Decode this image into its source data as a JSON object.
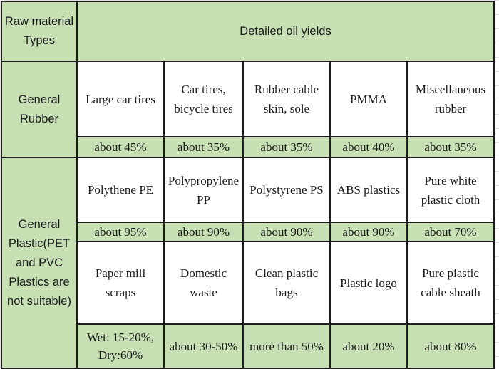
{
  "header": {
    "type_col": "Raw material Types",
    "yields_col": "Detailed oil yields"
  },
  "groups": [
    {
      "type": "General Rubber",
      "rows": [
        {
          "items": [
            "Large car tires",
            "Car tires, bicycle tires",
            "Rubber cable skin, sole",
            "PMMA",
            "Miscellaneous rubber"
          ],
          "yields": [
            "about 45%",
            "about 35%",
            "about 35%",
            "about 40%",
            "about 35%"
          ]
        }
      ]
    },
    {
      "type": "General Plastic(PET and PVC Plastics are not suitable)",
      "rows": [
        {
          "items": [
            "Polythene PE",
            "Polypropylene PP",
            "Polystyrene PS",
            "ABS plastics",
            "Pure white plastic cloth"
          ],
          "yields": [
            "about 95%",
            "about 90%",
            "about 90%",
            "about 90%",
            "about 70%"
          ]
        },
        {
          "items": [
            "Paper mill scraps",
            "Domestic waste",
            "Clean plastic bags",
            "Plastic logo",
            "Pure plastic cable sheath"
          ],
          "yields": [
            "Wet: 15-20%, Dry:60%",
            "about 30-50%",
            "more than 50%",
            "about 20%",
            "about 80%"
          ]
        }
      ]
    }
  ]
}
